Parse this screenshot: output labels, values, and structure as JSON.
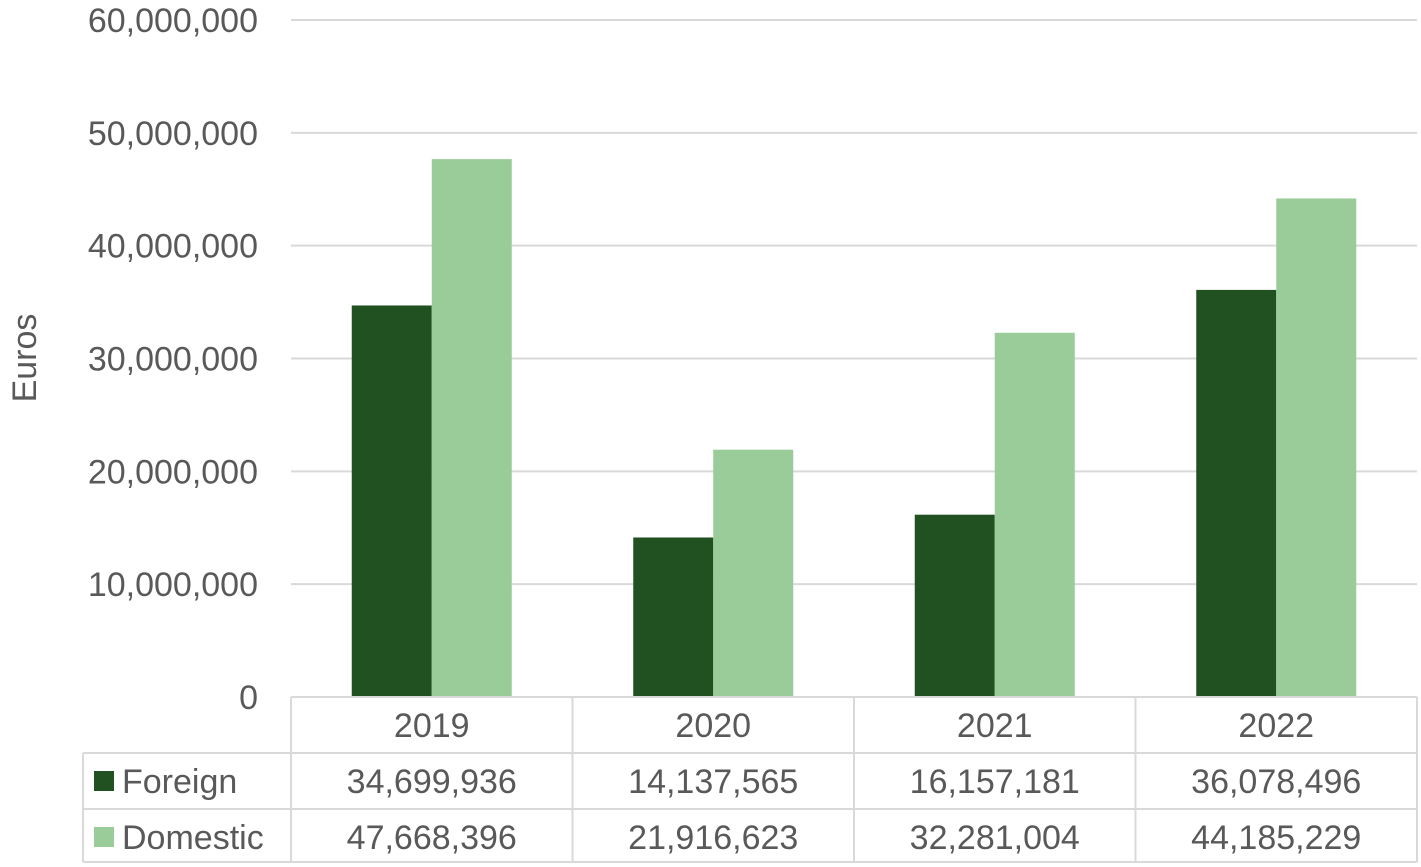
{
  "chart_data": {
    "type": "bar",
    "title": "",
    "xlabel": "",
    "ylabel": "Euros",
    "ylim": [
      0,
      60000000
    ],
    "yticks": [
      0,
      10000000,
      20000000,
      30000000,
      40000000,
      50000000,
      60000000
    ],
    "ytick_labels": [
      "0",
      "10,000,000",
      "20,000,000",
      "30,000,000",
      "40,000,000",
      "50,000,000",
      "60,000,000"
    ],
    "categories": [
      "2019",
      "2020",
      "2021",
      "2022"
    ],
    "grid": true,
    "legend": "data table, left column",
    "series": [
      {
        "name": "Foreign",
        "color": "#215121",
        "values": [
          34699936,
          14137565,
          16157181,
          36078496
        ],
        "labels": [
          "34,699,936",
          "14,137,565",
          "16,157,181",
          "36,078,496"
        ]
      },
      {
        "name": "Domestic",
        "color": "#99CC99",
        "values": [
          47668396,
          21916623,
          32281004,
          44185229
        ],
        "labels": [
          "47,668,396",
          "21,916,623",
          "32,281,004",
          "44,185,229"
        ]
      }
    ]
  }
}
